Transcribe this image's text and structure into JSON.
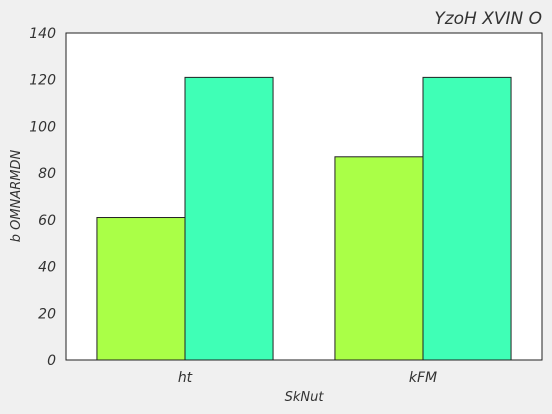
{
  "chart_data": {
    "type": "bar",
    "title": "YzoH XVIN O",
    "xlabel": "SkNut",
    "ylabel": "b OMNARMDN",
    "categories": [
      "ht",
      "kFM"
    ],
    "series": [
      {
        "values": [
          61,
          87
        ],
        "color": "#aaff47"
      },
      {
        "values": [
          121,
          121
        ],
        "color": "#3fffb6"
      }
    ],
    "ylim": [
      0,
      140
    ],
    "yticks": [
      0,
      20,
      40,
      60,
      80,
      100,
      120,
      140
    ],
    "grid": false,
    "legend": false
  }
}
